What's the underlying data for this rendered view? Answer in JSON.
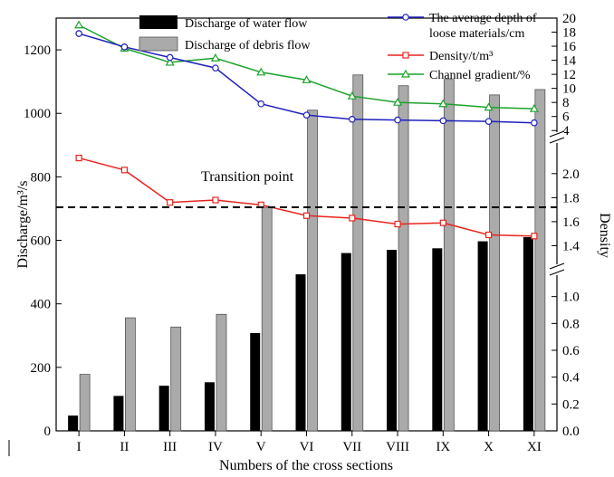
{
  "chart_data": {
    "type": "bar",
    "xlabel": "Numbers of the cross sections",
    "ylabel_left": "Discharge/m³/s",
    "ylabel_right": "Density",
    "categories": [
      "I",
      "II",
      "III",
      "IV",
      "V",
      "VI",
      "VII",
      "VIII",
      "IX",
      "X",
      "XI"
    ],
    "left_axis": {
      "ylim": [
        0,
        1300
      ],
      "ticks": [
        0,
        200,
        400,
        600,
        800,
        1000,
        1200
      ]
    },
    "right_axis": {
      "lower_segment": {
        "range": [
          0.0,
          1.2
        ],
        "ticks": [
          "0.0",
          "0.2",
          "0.4",
          "0.6",
          "0.8",
          "1.0"
        ]
      },
      "middle_segment": {
        "range": [
          1.2,
          2.3
        ],
        "ticks": [
          "1.4",
          "1.6",
          "1.8",
          "2.0"
        ]
      },
      "upper_segment": {
        "range": [
          3,
          20
        ],
        "ticks": [
          "4",
          "6",
          "8",
          "10",
          "12",
          "14",
          "16",
          "18",
          "20"
        ]
      }
    },
    "series": [
      {
        "name": "Discharge of water flow",
        "kind": "bar",
        "color": "#000000",
        "values": [
          48,
          110,
          142,
          153,
          308,
          493,
          560,
          570,
          575,
          597,
          610
        ]
      },
      {
        "name": "Discharge of debris flow",
        "kind": "bar",
        "color": "#aaaaaa",
        "values": [
          178,
          356,
          327,
          367,
          704,
          1010,
          1121,
          1087,
          1107,
          1058,
          1075
        ]
      },
      {
        "name": "The average depth of loose materials/cm",
        "kind": "line",
        "axis": "right-upper",
        "color": "#1f1fbf",
        "values": [
          17.8,
          15.9,
          14.4,
          12.9,
          7.8,
          6.2,
          5.6,
          5.5,
          5.4,
          5.3,
          5.1
        ]
      },
      {
        "name": "Density/t/m³",
        "kind": "line",
        "axis": "right-middle",
        "color": "#e8241e",
        "values": [
          2.13,
          2.03,
          1.76,
          1.78,
          1.74,
          1.65,
          1.63,
          1.58,
          1.59,
          1.49,
          1.48
        ]
      },
      {
        "name": "Channel gradient/%",
        "kind": "line",
        "axis": "right-upper",
        "color": "#1aa32a",
        "values": [
          19.0,
          15.7,
          13.7,
          14.3,
          12.3,
          11.2,
          8.9,
          8.0,
          7.8,
          7.3,
          7.1
        ]
      }
    ],
    "annotations": [
      {
        "text": "Transition point",
        "value": 704,
        "axis": "left",
        "style": "dashed horizontal line"
      }
    ],
    "legend_placement": "top",
    "grid": false
  }
}
